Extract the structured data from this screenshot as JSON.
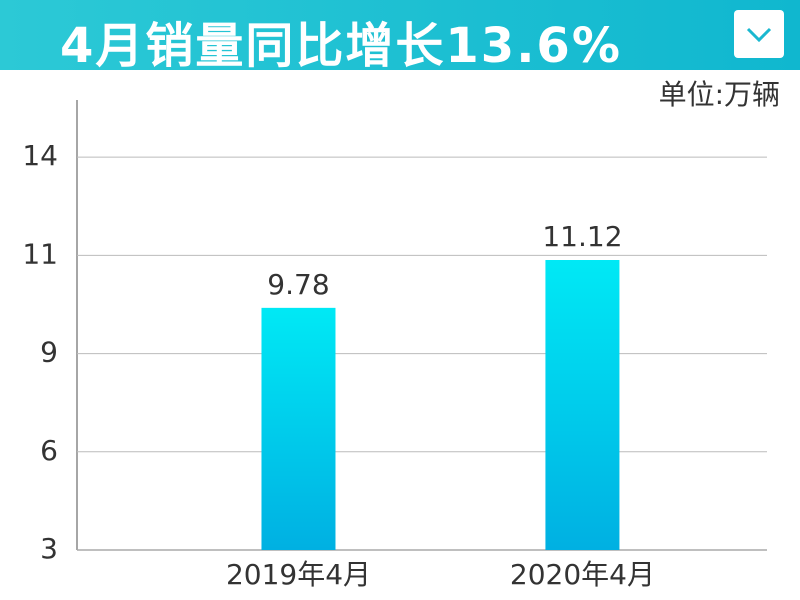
{
  "chart_data": {
    "type": "bar",
    "title": "4月销量同比增长13.6%",
    "unit": "单位:万辆",
    "categories": [
      "2019年4月",
      "2020年4月"
    ],
    "values": [
      9.78,
      11.12
    ],
    "ylim": [
      3,
      15.6
    ],
    "yticks": [
      3,
      {
        "value": 5.75,
        "label": "6"
      },
      {
        "value": 8.5,
        "label": "9"
      },
      {
        "value": 11.25,
        "label": "11"
      },
      14
    ],
    "grid": true
  }
}
